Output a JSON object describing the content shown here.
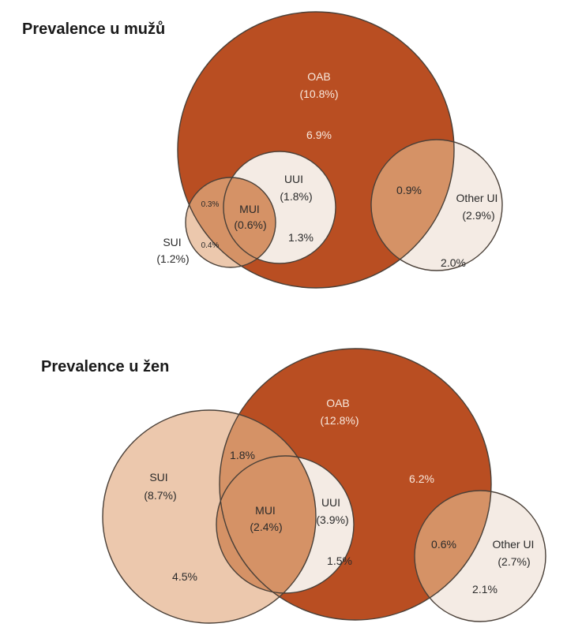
{
  "colors": {
    "oab": "#b94e22",
    "oab_overlap": "#d59266",
    "sui": "#ecc8ad",
    "other": "#f4ebe4",
    "uui": "#f4ebe4",
    "stroke": "#4a4038",
    "dark_text": "#2a2a2a",
    "light_text": "#f8e9de"
  },
  "men": {
    "title": "Prevalence u mužů",
    "oab_name": "OAB",
    "oab_total": "(10.8%)",
    "oab_only": "6.9%",
    "uui_name": "UUI",
    "uui_total": "(1.8%)",
    "uui_only": "1.3%",
    "mui_name": "MUI",
    "mui_total": "(0.6%)",
    "sui_name": "SUI",
    "sui_total": "(1.2%)",
    "sui_only": "0.4%",
    "sui_oab": "0.3%",
    "other_name": "Other UI",
    "other_total": "(2.9%)",
    "other_only": "2.0%",
    "other_oab": "0.9%"
  },
  "women": {
    "title": "Prevalence u žen",
    "oab_name": "OAB",
    "oab_total": "(12.8%)",
    "oab_only": "6.2%",
    "uui_name": "UUI",
    "uui_total": "(3.9%)",
    "uui_only": "1.5%",
    "mui_name": "MUI",
    "mui_total": "(2.4%)",
    "sui_name": "SUI",
    "sui_total": "(8.7%)",
    "sui_only": "4.5%",
    "sui_oab": "1.8%",
    "other_name": "Other UI",
    "other_total": "(2.7%)",
    "other_only": "2.1%",
    "other_oab": "0.6%"
  }
}
